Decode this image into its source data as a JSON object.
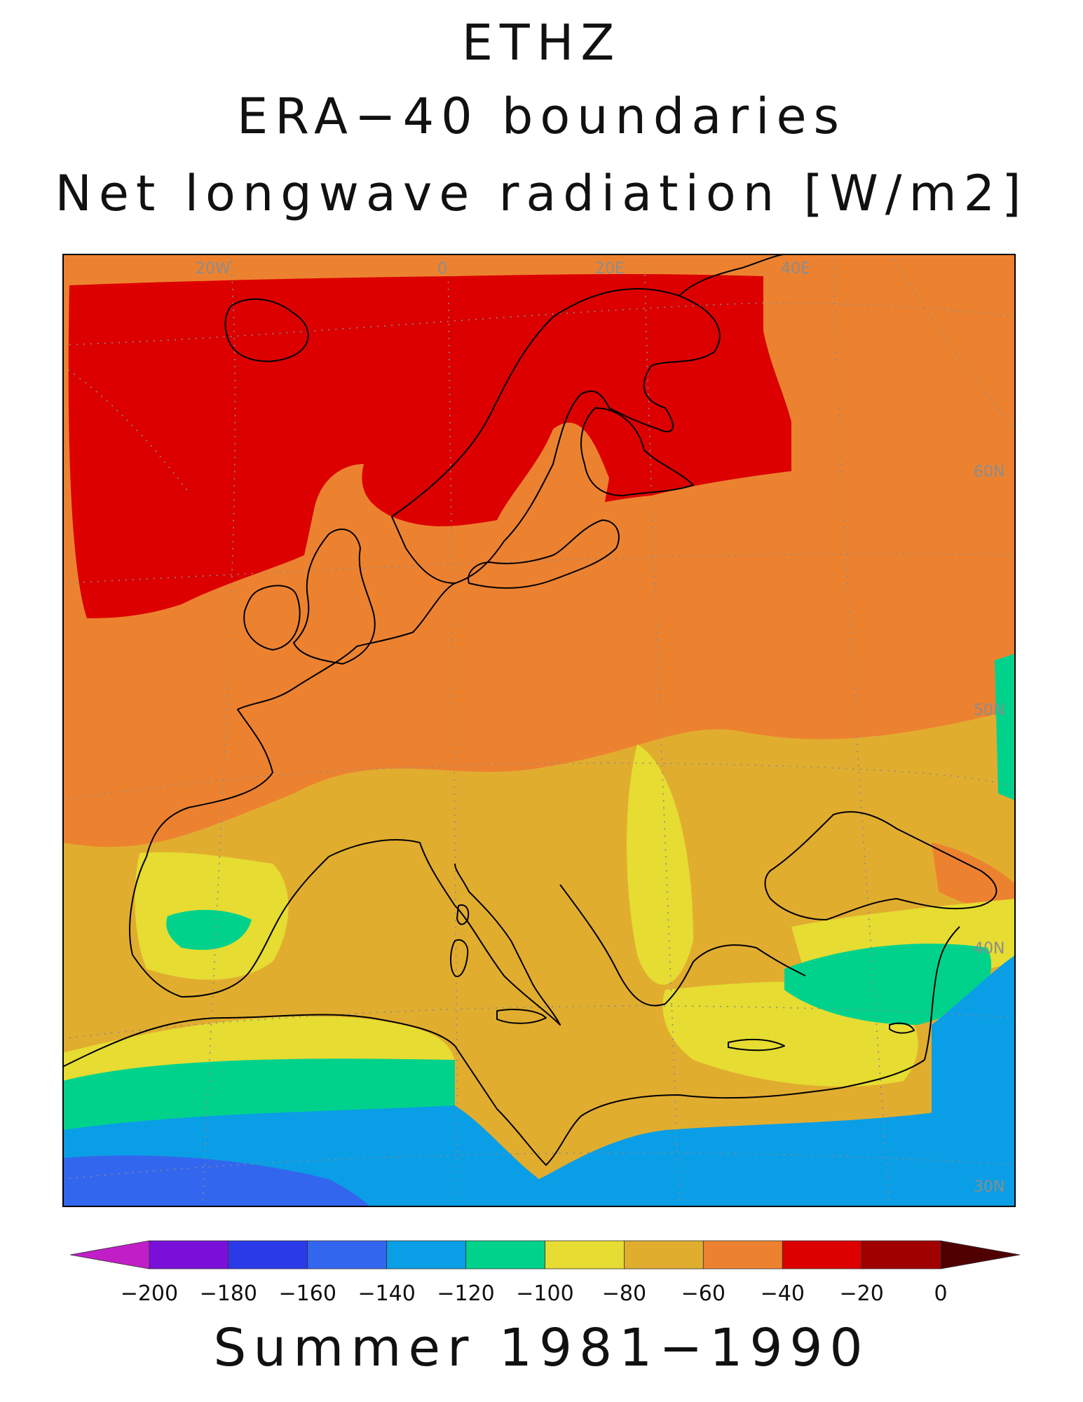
{
  "title": {
    "line1": "ETHZ",
    "line2": "ERA−40 boundaries",
    "line3": "Net longwave radiation [W/m2]"
  },
  "footer": "Summer 1981−1990",
  "map": {
    "variable": "Net longwave radiation",
    "units": "W/m2",
    "region": "Europe",
    "longitude_labels": [
      "20W",
      "0",
      "20E",
      "40E"
    ],
    "latitude_labels": [
      "60N",
      "50N",
      "40N",
      "30N"
    ],
    "coastline_color": "#000000",
    "graticule_color": "#8a8a8a",
    "ocean_shade": "#e1ad2f"
  },
  "colorbar": {
    "ticks": [
      "−200",
      "−180",
      "−160",
      "−140",
      "−120",
      "−100",
      "−80",
      "−60",
      "−40",
      "−20",
      "0"
    ],
    "bins": [
      {
        "lo": -220,
        "hi": -200,
        "color": "#c21ec8"
      },
      {
        "lo": -200,
        "hi": -180,
        "color": "#7a10d8"
      },
      {
        "lo": -180,
        "hi": -160,
        "color": "#2a3ae8"
      },
      {
        "lo": -160,
        "hi": -140,
        "color": "#3366ee"
      },
      {
        "lo": -140,
        "hi": -120,
        "color": "#0a9ee6"
      },
      {
        "lo": -120,
        "hi": -100,
        "color": "#00d28c"
      },
      {
        "lo": -100,
        "hi": -80,
        "color": "#e6dc32"
      },
      {
        "lo": -80,
        "hi": -60,
        "color": "#e1ad2f"
      },
      {
        "lo": -60,
        "hi": -40,
        "color": "#ec8230"
      },
      {
        "lo": -40,
        "hi": -20,
        "color": "#dc0000"
      },
      {
        "lo": -20,
        "hi": 0,
        "color": "#a00000"
      },
      {
        "lo": 0,
        "hi": 20,
        "color": "#500000"
      }
    ]
  }
}
